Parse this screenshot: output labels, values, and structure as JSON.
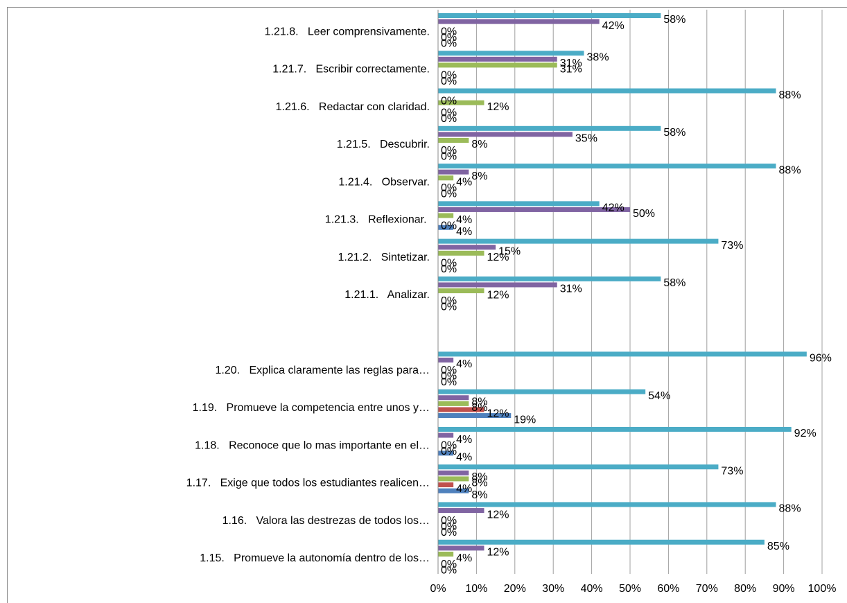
{
  "chart_data": {
    "type": "hbar",
    "categories": [
      "1.21.8.   Leer comprensivamente.",
      "1.21.7.   Escribir correctamente.",
      "1.21.6.   Redactar con claridad.",
      "1.21.5.   Descubrir.",
      "1.21.4.   Observar.",
      "1.21.3.   Reflexionar. ",
      "1.21.2.   Sintetizar.",
      "1.21.1.   Analizar.",
      null,
      "1.20.   Explica claramente las reglas para…",
      "1.19.   Promueve la competencia entre unos y…",
      "1.18.   Reconoce que lo mas importante en el…",
      "1.17.   Exige que todos los estudiantes realicen…",
      "1.16.   Valora las destrezas de todos los…",
      "1.15.   Promueve la autonomía dentro de los…"
    ],
    "series": [
      {
        "color": "#4f81bd",
        "values": [
          0,
          0,
          0,
          0,
          0,
          4,
          0,
          0,
          null,
          0,
          19,
          4,
          8,
          0,
          0
        ],
        "value_labels": [
          "0%",
          "0%",
          "0%",
          "0%",
          "0%",
          "4%",
          "0%",
          "0%",
          null,
          "0%",
          "19%",
          "4%",
          "8%",
          "0%",
          "0%"
        ]
      },
      {
        "color": "#c0504d",
        "values": [
          0,
          0,
          0,
          0,
          0,
          0,
          0,
          0,
          null,
          0,
          12,
          0,
          4,
          0,
          0
        ],
        "value_labels": [
          "0%",
          "0%",
          "0%",
          "0%",
          "0%",
          "0%",
          "0%",
          "0%",
          null,
          "0%",
          "12%",
          "0%",
          "4%",
          "0%",
          "0%"
        ]
      },
      {
        "color": "#9bbb59",
        "values": [
          0,
          31,
          12,
          8,
          4,
          4,
          12,
          12,
          null,
          0,
          8,
          0,
          8,
          0,
          4
        ],
        "value_labels": [
          "0%",
          "31%",
          "12%",
          "8%",
          "4%",
          "4%",
          "12%",
          "12%",
          null,
          "0%",
          "8%",
          "0%",
          "8%",
          "0%",
          "4%"
        ]
      },
      {
        "color": "#8064a2",
        "values": [
          42,
          31,
          0,
          35,
          8,
          50,
          15,
          31,
          null,
          4,
          8,
          4,
          8,
          12,
          12
        ],
        "value_labels": [
          "42%",
          "31%",
          "0%",
          "35%",
          "8%",
          "50%",
          "15%",
          "31%",
          null,
          "4%",
          "8%",
          "4%",
          "8%",
          "12%",
          "12%"
        ]
      },
      {
        "color": "#4bacc6",
        "values": [
          58,
          38,
          88,
          58,
          88,
          42,
          73,
          58,
          null,
          96,
          54,
          92,
          73,
          88,
          85
        ],
        "value_labels": [
          "58%",
          "38%",
          "88%",
          "58%",
          "88%",
          "42%",
          "73%",
          "58%",
          null,
          "96%",
          "54%",
          "92%",
          "73%",
          "88%",
          "85%"
        ]
      }
    ],
    "xlim": [
      0,
      100
    ],
    "xticks": [
      {
        "value": 0,
        "label": "0%"
      },
      {
        "value": 10,
        "label": "10%"
      },
      {
        "value": 20,
        "label": "20%"
      },
      {
        "value": 30,
        "label": "30%"
      },
      {
        "value": 40,
        "label": "40%"
      },
      {
        "value": 50,
        "label": "50%"
      },
      {
        "value": 60,
        "label": "60%"
      },
      {
        "value": 70,
        "label": "70%"
      },
      {
        "value": 80,
        "label": "80%"
      },
      {
        "value": 90,
        "label": "90%"
      },
      {
        "value": 100,
        "label": "100%"
      }
    ],
    "grid": true
  }
}
